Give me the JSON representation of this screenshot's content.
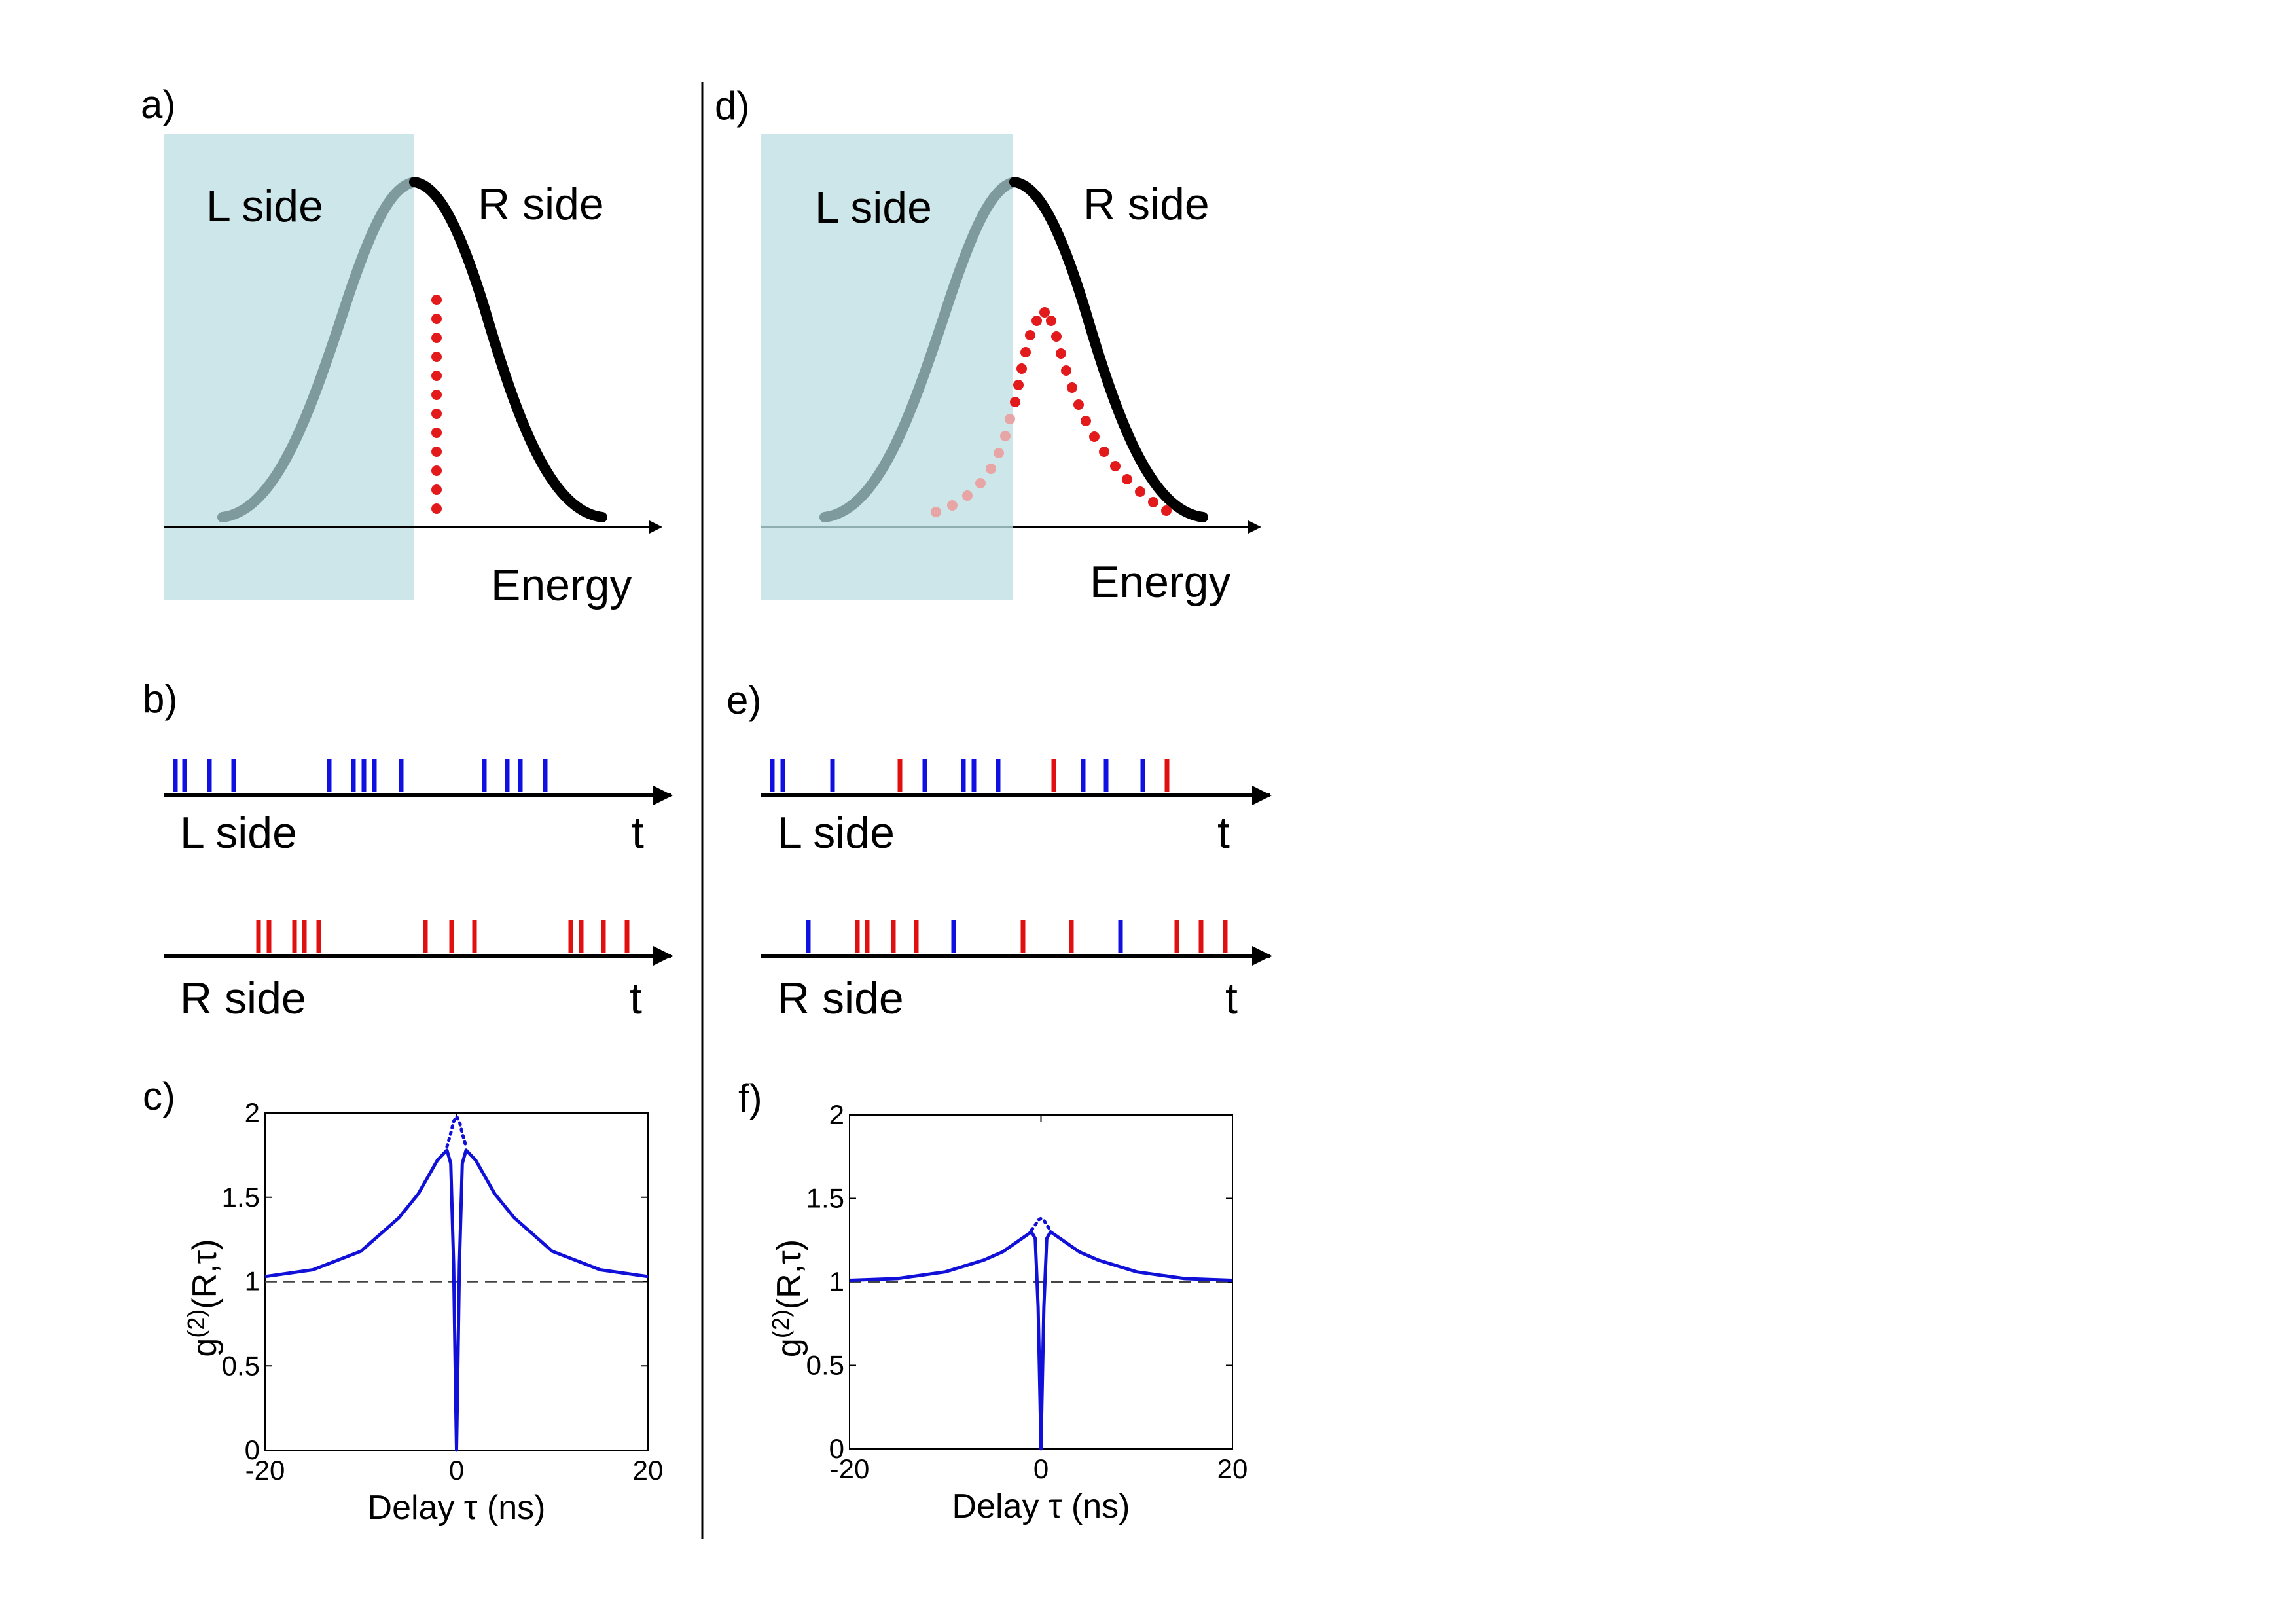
{
  "colors": {
    "l_side_shade": "#cde6e9",
    "gaussian_l": "#7f9a9c",
    "gaussian_r": "#000000",
    "emission": "#e31a1c",
    "emission_faded": "#e8a5a5",
    "l_photon": "#1010e0",
    "r_photon": "#e01010",
    "g2_curve": "#1010d8",
    "separator": "#000000"
  },
  "left": {
    "panel_a": {
      "label": "a)",
      "l_side": "L side",
      "r_side": "R side",
      "axis": "Energy"
    },
    "panel_b": {
      "label": "b)",
      "l_row": {
        "label": "L side",
        "t": "t"
      },
      "r_row": {
        "label": "R side",
        "t": "t"
      }
    },
    "panel_c": {
      "label": "c)"
    }
  },
  "right": {
    "panel_d": {
      "label": "d)",
      "l_side": "L side",
      "r_side": "R side",
      "axis": "Energy"
    },
    "panel_e": {
      "label": "e)",
      "l_row": {
        "label": "L side",
        "t": "t"
      },
      "r_row": {
        "label": "R side",
        "t": "t"
      }
    },
    "panel_f": {
      "label": "f)"
    }
  },
  "chart_data": [
    {
      "panel": "c)",
      "type": "line",
      "xlabel": "Delay τ (ns)",
      "ylabel": "g(2)(R,τ)",
      "ylabel_parts": {
        "base": "g",
        "sup": "(2)",
        "rest": "(R,τ)"
      },
      "xlim": [
        -20,
        20
      ],
      "ylim": [
        0,
        2
      ],
      "xticks": [
        "-20",
        "0",
        "20"
      ],
      "yticks": [
        "0",
        "0.5",
        "1",
        "1.5",
        "2"
      ],
      "grid": false,
      "reference_line": {
        "y": 1,
        "style": "dashed"
      },
      "series": [
        {
          "style": "solid",
          "x": [
            -20,
            -15,
            -10,
            -6,
            -4,
            -2,
            -1,
            -0.6,
            -0.3,
            -0.1,
            0,
            0.1,
            0.3,
            0.6,
            1,
            2,
            4,
            6,
            10,
            15,
            20
          ],
          "y": [
            1.03,
            1.07,
            1.18,
            1.38,
            1.52,
            1.72,
            1.78,
            1.7,
            1.1,
            0.35,
            0,
            0.35,
            1.1,
            1.7,
            1.78,
            1.72,
            1.52,
            1.38,
            1.18,
            1.07,
            1.03
          ]
        },
        {
          "style": "dotted",
          "x": [
            -1,
            -0.6,
            -0.3,
            0,
            0.3,
            0.6,
            1
          ],
          "y": [
            1.8,
            1.88,
            1.95,
            1.98,
            1.95,
            1.88,
            1.8
          ]
        }
      ]
    },
    {
      "panel": "f)",
      "type": "line",
      "xlabel": "Delay τ (ns)",
      "ylabel": "g(2)(R,τ)",
      "ylabel_parts": {
        "base": "g",
        "sup": "(2)",
        "rest": "(R,τ)"
      },
      "xlim": [
        -20,
        20
      ],
      "ylim": [
        0,
        2
      ],
      "xticks": [
        "-20",
        "0",
        "20"
      ],
      "yticks": [
        "0",
        "0.5",
        "1",
        "1.5",
        "2"
      ],
      "grid": false,
      "reference_line": {
        "y": 1,
        "style": "dashed"
      },
      "series": [
        {
          "style": "solid",
          "x": [
            -20,
            -15,
            -10,
            -6,
            -4,
            -2,
            -1,
            -0.6,
            -0.3,
            -0.1,
            0,
            0.1,
            0.3,
            0.6,
            1,
            2,
            4,
            6,
            10,
            15,
            20
          ],
          "y": [
            1.01,
            1.02,
            1.06,
            1.13,
            1.18,
            1.26,
            1.3,
            1.26,
            0.85,
            0.3,
            0,
            0.3,
            0.85,
            1.26,
            1.3,
            1.26,
            1.18,
            1.13,
            1.06,
            1.02,
            1.01
          ]
        },
        {
          "style": "dotted",
          "x": [
            -1,
            -0.6,
            -0.3,
            0,
            0.3,
            0.6,
            1
          ],
          "y": [
            1.31,
            1.34,
            1.37,
            1.38,
            1.37,
            1.34,
            1.31
          ]
        }
      ]
    }
  ]
}
